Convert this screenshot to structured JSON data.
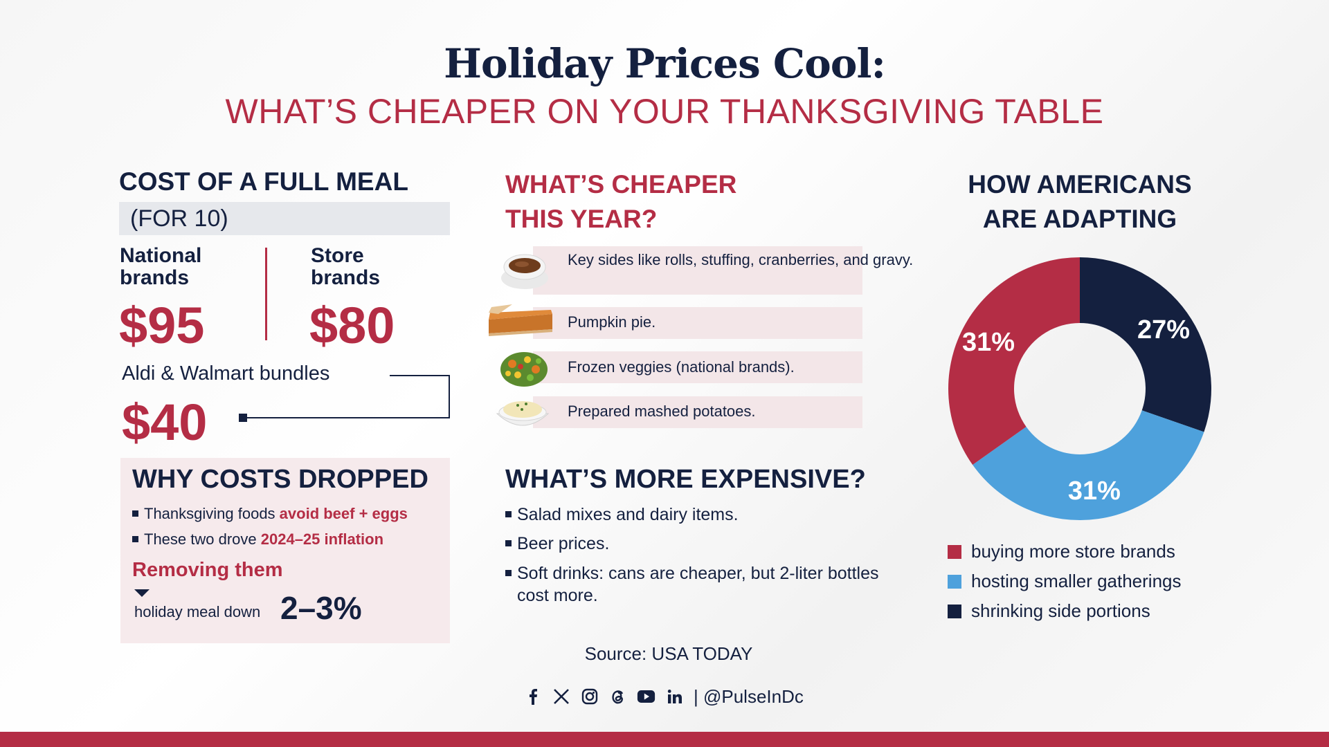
{
  "header": {
    "title": "Holiday Prices Cool:",
    "subtitle": "WHAT’S CHEAPER ON YOUR THANKSGIVING TABLE"
  },
  "cost": {
    "heading": "COST OF A FULL MEAL",
    "subheading": "(FOR 10)",
    "national_label": "National brands",
    "national_price": "$95",
    "store_label": "Store brands",
    "store_price": "$80",
    "bundle_label": "Aldi & Walmart bundles",
    "bundle_price": "$40"
  },
  "why": {
    "heading": "WHY COSTS DROPPED",
    "item1_text": "Thanksgiving foods ",
    "item1_highlight": "avoid beef + eggs",
    "item2_text": "These two drove ",
    "item2_highlight": "2024–25 inflation",
    "removing": "Removing them",
    "meal_down": "holiday meal down",
    "percent": "2–3%"
  },
  "cheaper": {
    "heading_line1": "WHAT’S CHEAPER",
    "heading_line2": "THIS YEAR?",
    "items": [
      {
        "text": "Key sides like rolls, stuffing, cranberries, and gravy.",
        "icon": "gravy-boat-icon"
      },
      {
        "text": "Pumpkin pie.",
        "icon": "pumpkin-pie-icon"
      },
      {
        "text": "Frozen veggies (national brands).",
        "icon": "frozen-veggies-icon"
      },
      {
        "text": "Prepared mashed potatoes.",
        "icon": "mashed-potatoes-icon"
      }
    ]
  },
  "expensive": {
    "heading": "WHAT’S MORE EXPENSIVE?",
    "items": [
      "Salad mixes and dairy items.",
      "Beer prices.",
      "Soft drinks: cans are cheaper, but 2-liter bottles cost more."
    ]
  },
  "footer": {
    "source": "Source: USA TODAY",
    "handle": "| @PulseInDc",
    "social_icons": [
      "facebook-icon",
      "x-icon",
      "instagram-icon",
      "threads-icon",
      "youtube-icon",
      "linkedin-icon"
    ]
  },
  "colors": {
    "navy": "#14203f",
    "red": "#b42d45",
    "blue": "#4ea1dc"
  },
  "chart_data": {
    "type": "pie",
    "title": "HOW AMERICANS ARE ADAPTING",
    "title_line1": "HOW AMERICANS",
    "title_line2": "ARE ADAPTING",
    "donut": true,
    "legend_position": "bottom",
    "series": [
      {
        "name": "buying more store brands",
        "value": 31,
        "label": "31%",
        "color": "#b42d45"
      },
      {
        "name": "hosting smaller gatherings",
        "value": 31,
        "label": "31%",
        "color": "#4ea1dc"
      },
      {
        "name": "shrinking side portions",
        "value": 27,
        "label": "27%",
        "color": "#14203f"
      }
    ]
  }
}
